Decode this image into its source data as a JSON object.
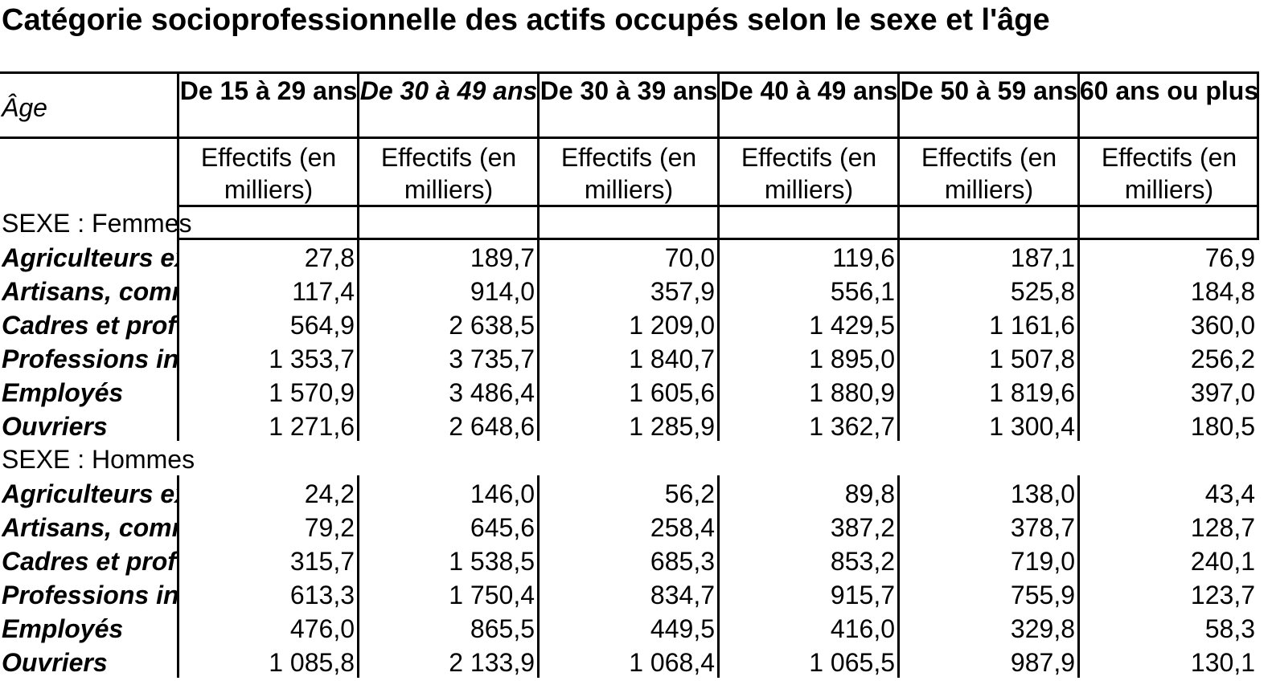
{
  "title": "Catégorie socioprofessionnelle des actifs occupés selon le sexe et l'âge",
  "corner_label": "Âge",
  "columns": [
    {
      "label": "De 15 à 29 ans",
      "unit": "Effectifs (en milliers)"
    },
    {
      "label": "De 30 à 49 ans",
      "unit": "Effectifs (en milliers)"
    },
    {
      "label": "De 30 à 39 ans",
      "unit": "Effectifs (en milliers)"
    },
    {
      "label": "De 40 à 49 ans",
      "unit": "Effectifs (en milliers)"
    },
    {
      "label": "De 50 à 59 ans",
      "unit": "Effectifs (en milliers)"
    },
    {
      "label": "60 ans ou plus",
      "unit": "Effectifs (en milliers)"
    }
  ],
  "sections": [
    {
      "label": "SEXE : Femmes",
      "rows": [
        {
          "label": "Agriculteurs exploitants",
          "values": [
            "27,8",
            "189,7",
            "70,0",
            "119,6",
            "187,1",
            "76,9"
          ]
        },
        {
          "label": "Artisans, commerçants, chefs d'entreprise",
          "values": [
            "117,4",
            "914,0",
            "357,9",
            "556,1",
            "525,8",
            "184,8"
          ]
        },
        {
          "label": "Cadres et professions intellectuelles supérieures",
          "values": [
            "564,9",
            "2 638,5",
            "1 209,0",
            "1 429,5",
            "1 161,6",
            "360,0"
          ]
        },
        {
          "label": "Professions intermédiaires",
          "values": [
            "1 353,7",
            "3 735,7",
            "1 840,7",
            "1 895,0",
            "1 507,8",
            "256,2"
          ]
        },
        {
          "label": "Employés",
          "values": [
            "1 570,9",
            "3 486,4",
            "1 605,6",
            "1 880,9",
            "1 819,6",
            "397,0"
          ]
        },
        {
          "label": "Ouvriers",
          "values": [
            "1 271,6",
            "2 648,6",
            "1 285,9",
            "1 362,7",
            "1 300,4",
            "180,5"
          ]
        }
      ]
    },
    {
      "label": "SEXE : Hommes",
      "rows": [
        {
          "label": "Agriculteurs exploitants",
          "values": [
            "24,2",
            "146,0",
            "56,2",
            "89,8",
            "138,0",
            "43,4"
          ]
        },
        {
          "label": "Artisans, commerçants, chefs d'entreprise",
          "values": [
            "79,2",
            "645,6",
            "258,4",
            "387,2",
            "378,7",
            "128,7"
          ]
        },
        {
          "label": "Cadres et professions intellectuelles supérieures",
          "values": [
            "315,7",
            "1 538,5",
            "685,3",
            "853,2",
            "719,0",
            "240,1"
          ]
        },
        {
          "label": "Professions intermédiaires",
          "values": [
            "613,3",
            "1 750,4",
            "834,7",
            "915,7",
            "755,9",
            "123,7"
          ]
        },
        {
          "label": "Employés",
          "values": [
            "476,0",
            "865,5",
            "449,5",
            "416,0",
            "329,8",
            "58,3"
          ]
        },
        {
          "label": "Ouvriers",
          "values": [
            "1 085,8",
            "2 133,9",
            "1 068,4",
            "1 065,5",
            "987,9",
            "130,1"
          ]
        }
      ]
    }
  ]
}
